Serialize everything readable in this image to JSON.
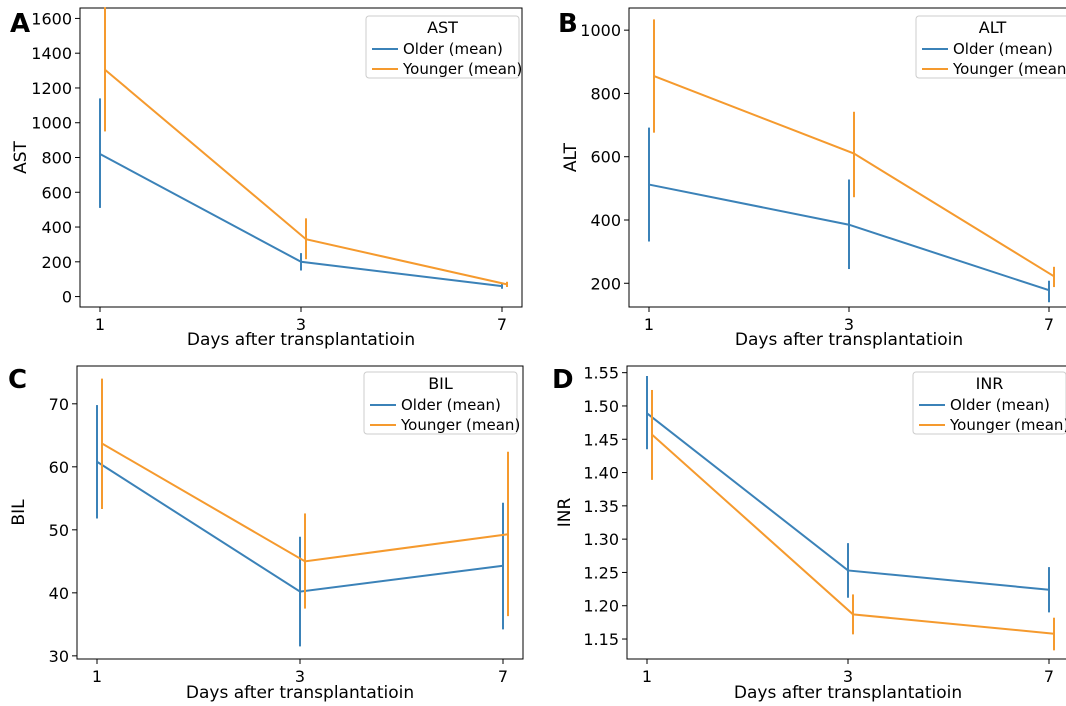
{
  "figure": {
    "panels": [
      {
        "letter": "A"
      },
      {
        "letter": "B"
      },
      {
        "letter": "C"
      },
      {
        "letter": "D"
      }
    ]
  },
  "colors": {
    "older": "#3b82b8",
    "younger": "#f59a2e",
    "axis": "#000000"
  },
  "chart_data": [
    {
      "type": "line",
      "panel": "A",
      "title": "",
      "xlabel": "Days after transplantatioin",
      "ylabel": "AST",
      "categories": [
        "1",
        "3",
        "7"
      ],
      "ylim": [
        -60,
        1660
      ],
      "yticks": [
        0,
        200,
        400,
        600,
        800,
        1000,
        1200,
        1400,
        1600
      ],
      "legend": {
        "title": "AST",
        "position": "top-right"
      },
      "series": [
        {
          "name": "Older (mean)",
          "values": [
            820,
            200,
            60
          ],
          "lower": [
            510,
            150,
            45
          ],
          "upper": [
            1140,
            250,
            75
          ]
        },
        {
          "name": "Younger (mean)",
          "values": [
            1305,
            330,
            70
          ],
          "lower": [
            950,
            215,
            55
          ],
          "upper": [
            1665,
            450,
            85
          ]
        }
      ]
    },
    {
      "type": "line",
      "panel": "B",
      "title": "",
      "xlabel": "Days after transplantatioin",
      "ylabel": "ALT",
      "categories": [
        "1",
        "3",
        "7"
      ],
      "ylim": [
        125,
        1070
      ],
      "yticks": [
        200,
        400,
        600,
        800,
        1000
      ],
      "legend": {
        "title": "ALT",
        "position": "top-right"
      },
      "series": [
        {
          "name": "Older (mean)",
          "values": [
            512,
            385,
            178
          ],
          "lower": [
            332,
            245,
            140
          ],
          "upper": [
            692,
            528,
            208
          ]
        },
        {
          "name": "Younger (mean)",
          "values": [
            855,
            610,
            222
          ],
          "lower": [
            676,
            472,
            188
          ],
          "upper": [
            1034,
            742,
            252
          ]
        }
      ]
    },
    {
      "type": "line",
      "panel": "C",
      "title": "",
      "xlabel": "Days after transplantatioin",
      "ylabel": "BIL",
      "categories": [
        "1",
        "3",
        "7"
      ],
      "ylim": [
        29.5,
        76
      ],
      "yticks": [
        30,
        40,
        50,
        60,
        70
      ],
      "legend": {
        "title": "BIL",
        "position": "top-right"
      },
      "series": [
        {
          "name": "Older (mean)",
          "values": [
            60.8,
            40.2,
            44.3
          ],
          "lower": [
            51.8,
            31.5,
            34.2
          ],
          "upper": [
            69.8,
            48.9,
            54.3
          ]
        },
        {
          "name": "Younger (mean)",
          "values": [
            63.7,
            45.0,
            49.3
          ],
          "lower": [
            53.3,
            37.5,
            36.3
          ],
          "upper": [
            74.0,
            52.6,
            62.4
          ]
        }
      ]
    },
    {
      "type": "line",
      "panel": "D",
      "title": "",
      "xlabel": "Days after transplantatioin",
      "ylabel": "INR",
      "categories": [
        "1",
        "3",
        "7"
      ],
      "ylim": [
        1.12,
        1.56
      ],
      "yticks": [
        1.15,
        1.2,
        1.25,
        1.3,
        1.35,
        1.4,
        1.45,
        1.5,
        1.55
      ],
      "ytick_decimals": 2,
      "legend": {
        "title": "INR",
        "position": "top-right"
      },
      "series": [
        {
          "name": "Older (mean)",
          "values": [
            1.489,
            1.253,
            1.224
          ],
          "lower": [
            1.435,
            1.212,
            1.19
          ],
          "upper": [
            1.545,
            1.294,
            1.258
          ]
        },
        {
          "name": "Younger (mean)",
          "values": [
            1.457,
            1.187,
            1.158
          ],
          "lower": [
            1.389,
            1.157,
            1.133
          ],
          "upper": [
            1.524,
            1.217,
            1.182
          ]
        }
      ]
    }
  ]
}
